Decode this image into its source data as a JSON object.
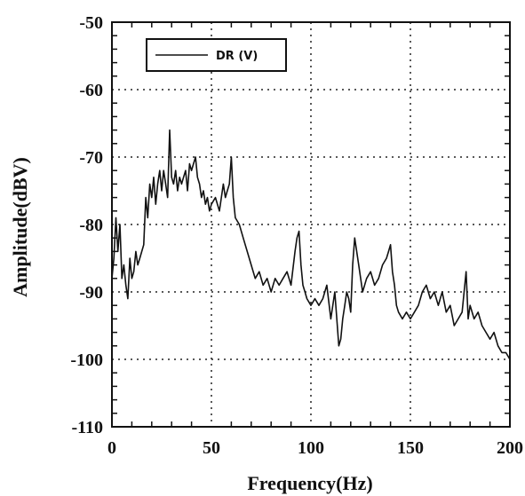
{
  "chart_data": {
    "type": "line",
    "title": "",
    "xlabel": "Frequency(Hz)",
    "ylabel": "Amplitude(dBV)",
    "xlim": [
      0,
      200
    ],
    "ylim": [
      -110,
      -50
    ],
    "xticks": [
      0,
      50,
      100,
      150,
      200
    ],
    "yticks": [
      -110,
      -100,
      -90,
      -80,
      -70,
      -60,
      -50
    ],
    "grid": true,
    "grid_style": "dotted",
    "legend_position": "top-left",
    "series": [
      {
        "name": "DR (V)",
        "color": "#111111",
        "x": [
          0,
          1,
          2,
          3,
          4,
          5,
          6,
          7,
          8,
          9,
          10,
          11,
          12,
          13,
          14,
          15,
          16,
          17,
          18,
          19,
          20,
          21,
          22,
          23,
          24,
          25,
          26,
          27,
          28,
          29,
          30,
          31,
          32,
          33,
          34,
          35,
          36,
          37,
          38,
          39,
          40,
          41,
          42,
          43,
          44,
          45,
          46,
          47,
          48,
          49,
          50,
          52,
          54,
          56,
          57,
          58,
          59,
          60,
          61,
          62,
          64,
          66,
          68,
          70,
          72,
          74,
          76,
          78,
          80,
          82,
          84,
          86,
          88,
          90,
          92,
          93,
          94,
          95,
          96,
          97,
          98,
          100,
          102,
          104,
          106,
          108,
          110,
          112,
          114,
          115,
          116,
          117,
          118,
          119,
          120,
          121,
          122,
          124,
          126,
          128,
          130,
          132,
          134,
          136,
          138,
          139,
          140,
          141,
          142,
          143,
          144,
          146,
          148,
          150,
          152,
          154,
          156,
          158,
          160,
          162,
          164,
          166,
          168,
          170,
          172,
          174,
          176,
          178,
          179,
          180,
          182,
          184,
          186,
          188,
          190,
          192,
          194,
          196,
          198,
          200
        ],
        "values": [
          -88,
          -85,
          -79,
          -84,
          -80,
          -88,
          -86,
          -89,
          -91,
          -85,
          -88,
          -87,
          -84,
          -86,
          -85,
          -84,
          -83,
          -76,
          -79,
          -74,
          -76,
          -73,
          -77,
          -74,
          -72,
          -75,
          -72,
          -74,
          -76,
          -66,
          -73,
          -74,
          -72,
          -75,
          -73,
          -74,
          -73,
          -72,
          -75,
          -71,
          -72,
          -71,
          -70,
          -73,
          -74,
          -76,
          -75,
          -77,
          -76,
          -78,
          -77,
          -76,
          -78,
          -74,
          -76,
          -75,
          -74,
          -70,
          -76,
          -79,
          -80,
          -82,
          -84,
          -86,
          -88,
          -87,
          -89,
          -88,
          -90,
          -88,
          -89,
          -88,
          -87,
          -89,
          -84,
          -82,
          -81,
          -86,
          -89,
          -90,
          -91,
          -92,
          -91,
          -92,
          -91,
          -89,
          -94,
          -90,
          -98,
          -97,
          -94,
          -92,
          -90,
          -91,
          -93,
          -86,
          -82,
          -86,
          -90,
          -88,
          -87,
          -89,
          -88,
          -86,
          -85,
          -84,
          -83,
          -87,
          -89,
          -92,
          -93,
          -94,
          -93,
          -94,
          -93,
          -92,
          -90,
          -89,
          -91,
          -90,
          -92,
          -90,
          -93,
          -92,
          -95,
          -94,
          -93,
          -87,
          -94,
          -92,
          -94,
          -93,
          -95,
          -96,
          -97,
          -96,
          -98,
          -99,
          -99,
          -100
        ]
      }
    ]
  }
}
